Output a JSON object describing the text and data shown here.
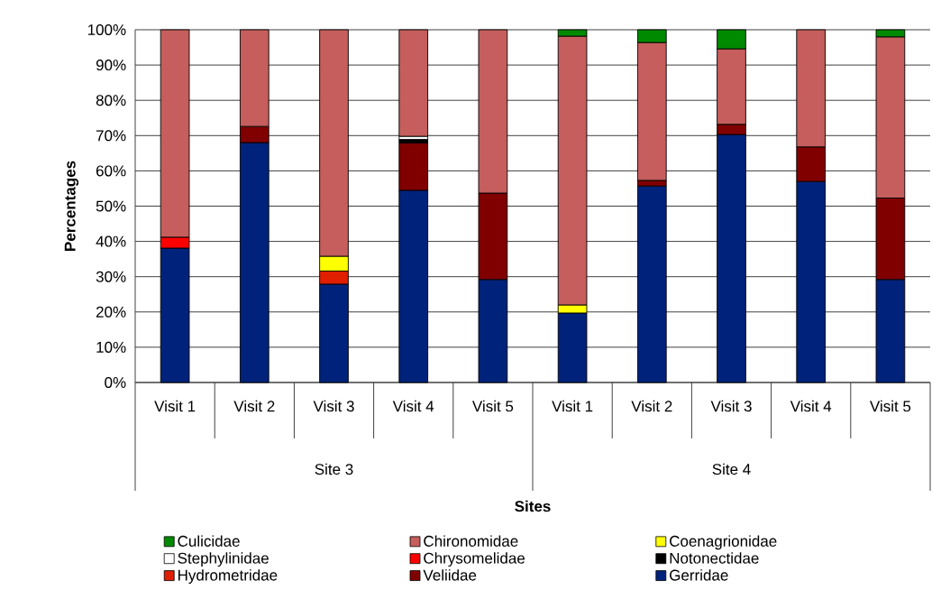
{
  "chart_data": {
    "type": "bar",
    "stacked": true,
    "ylabel": "Percentages",
    "categories": [
      "Visit 1",
      "Visit 2",
      "Visit 3",
      "Visit 4",
      "Visit 5",
      "Visit 1",
      "Visit 2",
      "Visit 3",
      "Visit 4",
      "Visit 5"
    ],
    "annotations": [
      "Site 3",
      "Site 4",
      "Sites"
    ],
    "series": [
      {
        "name": "Gerridae",
        "color": "#00227a",
        "values": [
          38.1,
          68.0,
          27.9,
          54.5,
          29.2,
          19.7,
          55.7,
          70.3,
          57.0,
          29.2
        ]
      },
      {
        "name": "Veliidae",
        "color": "#800000",
        "values": [
          null,
          4.6,
          null,
          13.4,
          24.5,
          null,
          1.6,
          2.9,
          9.8,
          23.1
        ]
      },
      {
        "name": "Hydrometridae",
        "color": "#e01e00",
        "values": [
          null,
          null,
          3.7,
          null,
          null,
          null,
          null,
          null,
          null,
          null
        ]
      },
      {
        "name": "Notonectidae",
        "color": "#000000",
        "values": [
          null,
          null,
          null,
          1.0,
          null,
          null,
          null,
          null,
          null,
          null
        ]
      },
      {
        "name": "Chrysomelidae",
        "color": "#ff0000",
        "values": [
          3.1,
          null,
          null,
          null,
          null,
          null,
          null,
          null,
          null,
          null
        ]
      },
      {
        "name": "Stephylinidae",
        "color": "#ffffff",
        "values": [
          null,
          null,
          null,
          0.9,
          null,
          null,
          null,
          null,
          null,
          null
        ]
      },
      {
        "name": "Coenagrionidae",
        "color": "#ffff00",
        "values": [
          null,
          null,
          4.2,
          null,
          null,
          2.3,
          null,
          null,
          null,
          null
        ]
      },
      {
        "name": "Chironomidae",
        "color": "#c55e5c",
        "values": [
          58.8,
          27.4,
          64.2,
          30.2,
          46.3,
          76.2,
          39.1,
          21.4,
          33.2,
          45.7
        ]
      },
      {
        "name": "Culicidae",
        "color": "#008a00",
        "values": [
          null,
          null,
          null,
          null,
          null,
          1.8,
          3.6,
          5.4,
          null,
          2.0
        ]
      }
    ],
    "ylim": [
      0,
      100
    ],
    "yticks": [
      {
        "value": 0,
        "label": "0%"
      },
      {
        "value": 10,
        "label": "10%"
      },
      {
        "value": 20,
        "label": "20%"
      },
      {
        "value": 30,
        "label": "30%"
      },
      {
        "value": 40,
        "label": "40%"
      },
      {
        "value": 50,
        "label": "50%"
      },
      {
        "value": 60,
        "label": "60%"
      },
      {
        "value": 70,
        "label": "70%"
      },
      {
        "value": 80,
        "label": "80%"
      },
      {
        "value": 90,
        "label": "90%"
      },
      {
        "value": 100,
        "label": "100%"
      }
    ],
    "grid": "y",
    "legend": "bottom"
  }
}
